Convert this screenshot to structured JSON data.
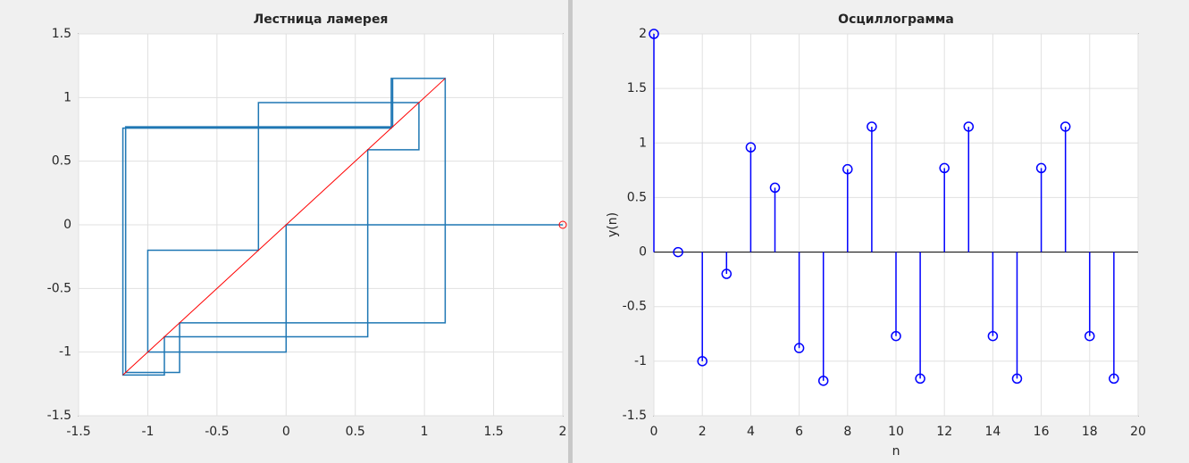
{
  "chart_data": [
    {
      "type": "lamerey",
      "title": "Лестница ламерея",
      "values": [
        2,
        0,
        -1,
        -0.2,
        0.96,
        0.59,
        -0.88,
        -1.18,
        0.76,
        1.15,
        -0.77,
        -1.16,
        0.77,
        1.15,
        -0.77,
        -1.16,
        0.77,
        1.15,
        -0.77,
        -1.16
      ],
      "color": "#1f77b4",
      "diagonal_color": "#ff0000",
      "xlim": [
        -1.5,
        2
      ],
      "ylim": [
        -1.5,
        1.5
      ],
      "xticks": [
        -1.5,
        -1,
        -0.5,
        0,
        0.5,
        1,
        1.5,
        2
      ],
      "yticks": [
        -1.5,
        -1,
        -0.5,
        0,
        0.5,
        1,
        1.5
      ],
      "grid": true
    },
    {
      "type": "stem",
      "title": "Осциллограмма",
      "xlabel": "n",
      "ylabel": "y(n)",
      "x": [
        0,
        1,
        2,
        3,
        4,
        5,
        6,
        7,
        8,
        9,
        10,
        11,
        12,
        13,
        14,
        15,
        16,
        17,
        18,
        19
      ],
      "values": [
        2,
        0,
        -1,
        -0.2,
        0.96,
        0.59,
        -0.88,
        -1.18,
        0.76,
        1.15,
        -0.77,
        -1.16,
        0.77,
        1.15,
        -0.77,
        -1.16,
        0.77,
        1.15,
        -0.77,
        -1.16
      ],
      "color": "#0000ff",
      "xlim": [
        0,
        20
      ],
      "ylim": [
        -1.5,
        2
      ],
      "xticks": [
        0,
        2,
        4,
        6,
        8,
        10,
        12,
        14,
        16,
        18,
        20
      ],
      "yticks": [
        -1.5,
        -1,
        -0.5,
        0,
        0.5,
        1,
        1.5,
        2
      ],
      "grid": true
    }
  ]
}
